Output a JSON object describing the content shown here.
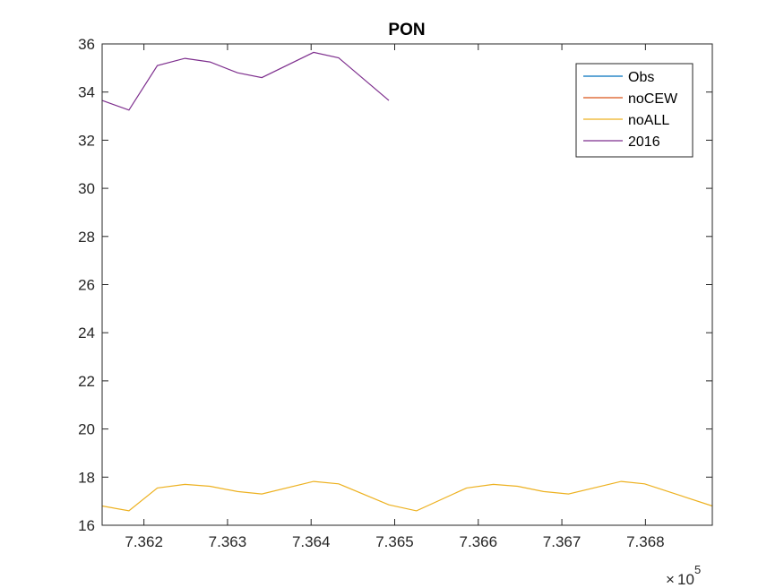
{
  "chart_data": {
    "type": "line",
    "title": "PON",
    "xlabel": "",
    "ylabel": "",
    "xlim": [
      736150,
      736880
    ],
    "ylim": [
      16,
      36
    ],
    "x_tick_labels": [
      "7.362",
      "7.363",
      "7.364",
      "7.365",
      "7.366",
      "7.367",
      "7.368"
    ],
    "x_ticks": [
      736200,
      736300,
      736400,
      736500,
      736600,
      736700,
      736800
    ],
    "x_exponent_label": {
      "base": "10",
      "exponent": "5"
    },
    "y_ticks": [
      16,
      18,
      20,
      22,
      24,
      26,
      28,
      30,
      32,
      34,
      36
    ],
    "y_tick_labels": [
      "16",
      "18",
      "20",
      "22",
      "24",
      "26",
      "28",
      "30",
      "32",
      "34",
      "36"
    ],
    "grid": false,
    "legend_position": "top-right",
    "series": [
      {
        "name": "Obs",
        "color": "#0072BD",
        "points": []
      },
      {
        "name": "noCEW",
        "color": "#D95319",
        "points": []
      },
      {
        "name": "noALL",
        "color": "#EDB120",
        "points": [
          [
            736150,
            16.8
          ],
          [
            736182,
            16.6
          ],
          [
            736216,
            17.55
          ],
          [
            736249,
            17.7
          ],
          [
            736279,
            17.62
          ],
          [
            736312,
            17.4
          ],
          [
            736341,
            17.3
          ],
          [
            736403,
            17.82
          ],
          [
            736433,
            17.72
          ],
          [
            736493,
            16.85
          ],
          [
            736526,
            16.6
          ],
          [
            736586,
            17.55
          ],
          [
            736618,
            17.7
          ],
          [
            736647,
            17.62
          ],
          [
            736678,
            17.4
          ],
          [
            736708,
            17.3
          ],
          [
            736771,
            17.82
          ],
          [
            736799,
            17.72
          ],
          [
            736880,
            16.8
          ]
        ]
      },
      {
        "name": "2016",
        "color": "#7E2F8E",
        "points": [
          [
            736150,
            33.65
          ],
          [
            736182,
            33.25
          ],
          [
            736216,
            35.1
          ],
          [
            736249,
            35.4
          ],
          [
            736279,
            35.25
          ],
          [
            736312,
            34.8
          ],
          [
            736341,
            34.6
          ],
          [
            736403,
            35.65
          ],
          [
            736433,
            35.42
          ],
          [
            736493,
            33.65
          ]
        ]
      }
    ]
  }
}
